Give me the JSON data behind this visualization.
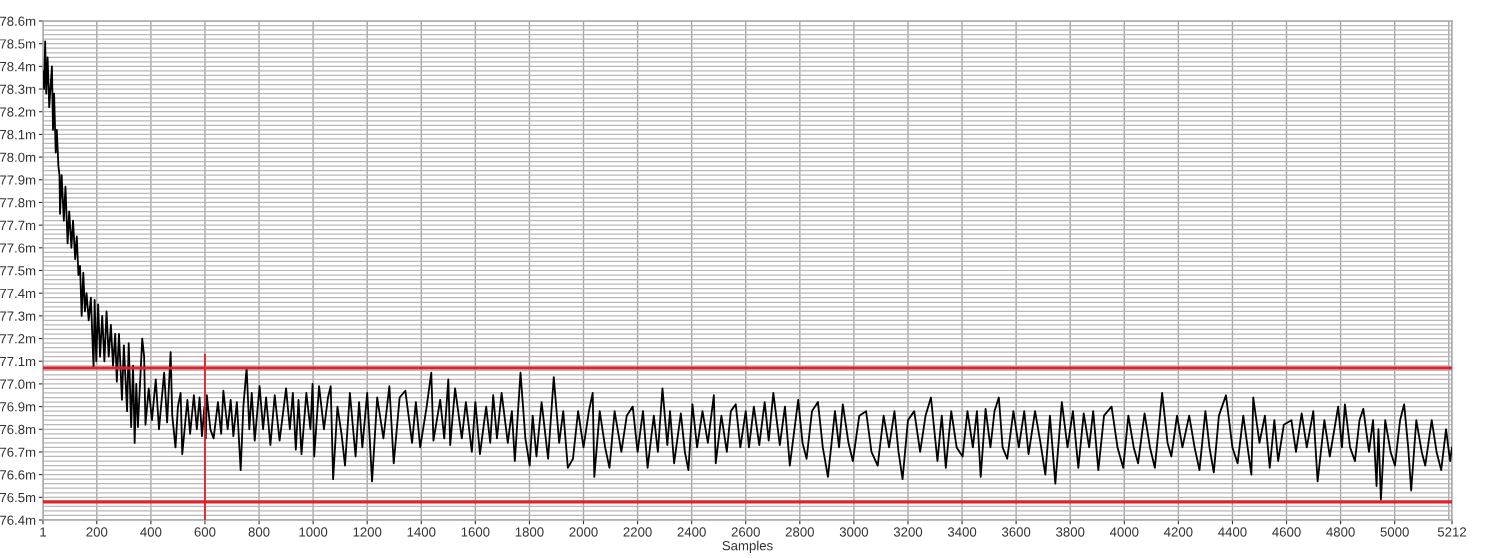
{
  "chart_data": {
    "type": "line",
    "xlabel": "Samples",
    "xlim": [
      1,
      5212
    ],
    "ylim": [
      76.4,
      78.6
    ],
    "grid": true,
    "xticks": [
      1,
      200,
      400,
      600,
      800,
      1000,
      1200,
      1400,
      1600,
      1800,
      2000,
      2200,
      2400,
      2600,
      2800,
      3000,
      3200,
      3400,
      3600,
      3800,
      4000,
      4200,
      4400,
      4600,
      4800,
      5000,
      {
        "value": 5200,
        "label": null
      },
      5212
    ],
    "yticks": [
      {
        "value": 76.4,
        "label": "76.4m"
      },
      {
        "value": 76.42,
        "label": null
      },
      {
        "value": 76.44,
        "label": null
      },
      {
        "value": 76.46,
        "label": null
      },
      {
        "value": 76.48,
        "label": null
      },
      {
        "value": 76.5,
        "label": "76.5m"
      },
      {
        "value": 76.52,
        "label": null
      },
      {
        "value": 76.54,
        "label": null
      },
      {
        "value": 76.56,
        "label": null
      },
      {
        "value": 76.58,
        "label": null
      },
      {
        "value": 76.6,
        "label": "76.6m"
      },
      {
        "value": 76.62,
        "label": null
      },
      {
        "value": 76.64,
        "label": null
      },
      {
        "value": 76.66,
        "label": null
      },
      {
        "value": 76.68,
        "label": null
      },
      {
        "value": 76.7,
        "label": "76.7m"
      },
      {
        "value": 76.72,
        "label": null
      },
      {
        "value": 76.74,
        "label": null
      },
      {
        "value": 76.76,
        "label": null
      },
      {
        "value": 76.78,
        "label": null
      },
      {
        "value": 76.8,
        "label": "76.8m"
      },
      {
        "value": 76.82,
        "label": null
      },
      {
        "value": 76.84,
        "label": null
      },
      {
        "value": 76.86,
        "label": null
      },
      {
        "value": 76.88,
        "label": null
      },
      {
        "value": 76.9,
        "label": "76.9m"
      },
      {
        "value": 76.92,
        "label": null
      },
      {
        "value": 76.94,
        "label": null
      },
      {
        "value": 76.96,
        "label": null
      },
      {
        "value": 76.98,
        "label": null
      },
      {
        "value": 77.0,
        "label": "77.0m"
      },
      {
        "value": 77.02,
        "label": null
      },
      {
        "value": 77.04,
        "label": null
      },
      {
        "value": 77.06,
        "label": null
      },
      {
        "value": 77.08,
        "label": null
      },
      {
        "value": 77.1,
        "label": "77.1m"
      },
      {
        "value": 77.12,
        "label": null
      },
      {
        "value": 77.14,
        "label": null
      },
      {
        "value": 77.16,
        "label": null
      },
      {
        "value": 77.18,
        "label": null
      },
      {
        "value": 77.2,
        "label": "77.2m"
      },
      {
        "value": 77.22,
        "label": null
      },
      {
        "value": 77.24,
        "label": null
      },
      {
        "value": 77.26,
        "label": null
      },
      {
        "value": 77.28,
        "label": null
      },
      {
        "value": 77.3,
        "label": "77.3m"
      },
      {
        "value": 77.32,
        "label": null
      },
      {
        "value": 77.34,
        "label": null
      },
      {
        "value": 77.36,
        "label": null
      },
      {
        "value": 77.38,
        "label": null
      },
      {
        "value": 77.4,
        "label": "77.4m"
      },
      {
        "value": 77.42,
        "label": null
      },
      {
        "value": 77.44,
        "label": null
      },
      {
        "value": 77.46,
        "label": null
      },
      {
        "value": 77.48,
        "label": null
      },
      {
        "value": 77.5,
        "label": "77.5m"
      },
      {
        "value": 77.52,
        "label": null
      },
      {
        "value": 77.54,
        "label": null
      },
      {
        "value": 77.56,
        "label": null
      },
      {
        "value": 77.58,
        "label": null
      },
      {
        "value": 77.6,
        "label": "77.6m"
      },
      {
        "value": 77.62,
        "label": null
      },
      {
        "value": 77.64,
        "label": null
      },
      {
        "value": 77.66,
        "label": null
      },
      {
        "value": 77.68,
        "label": null
      },
      {
        "value": 77.7,
        "label": "77.7m"
      },
      {
        "value": 77.72,
        "label": null
      },
      {
        "value": 77.74,
        "label": null
      },
      {
        "value": 77.76,
        "label": null
      },
      {
        "value": 77.78,
        "label": null
      },
      {
        "value": 77.8,
        "label": "77.8m"
      },
      {
        "value": 77.82,
        "label": null
      },
      {
        "value": 77.84,
        "label": null
      },
      {
        "value": 77.86,
        "label": null
      },
      {
        "value": 77.88,
        "label": null
      },
      {
        "value": 77.9,
        "label": "77.9m"
      },
      {
        "value": 77.92,
        "label": null
      },
      {
        "value": 77.94,
        "label": null
      },
      {
        "value": 77.96,
        "label": null
      },
      {
        "value": 77.98,
        "label": null
      },
      {
        "value": 78.0,
        "label": "78.0m"
      },
      {
        "value": 78.02,
        "label": null
      },
      {
        "value": 78.04,
        "label": null
      },
      {
        "value": 78.06,
        "label": null
      },
      {
        "value": 78.08,
        "label": null
      },
      {
        "value": 78.1,
        "label": "78.1m"
      },
      {
        "value": 78.12,
        "label": null
      },
      {
        "value": 78.14,
        "label": null
      },
      {
        "value": 78.16,
        "label": null
      },
      {
        "value": 78.18,
        "label": null
      },
      {
        "value": 78.2,
        "label": "78.2m"
      },
      {
        "value": 78.22,
        "label": null
      },
      {
        "value": 78.24,
        "label": null
      },
      {
        "value": 78.26,
        "label": null
      },
      {
        "value": 78.28,
        "label": null
      },
      {
        "value": 78.3,
        "label": "78.3m"
      },
      {
        "value": 78.32,
        "label": null
      },
      {
        "value": 78.34,
        "label": null
      },
      {
        "value": 78.36,
        "label": null
      },
      {
        "value": 78.38,
        "label": null
      },
      {
        "value": 78.4,
        "label": "78.4m"
      },
      {
        "value": 78.42,
        "label": null
      },
      {
        "value": 78.44,
        "label": null
      },
      {
        "value": 78.46,
        "label": null
      },
      {
        "value": 78.48,
        "label": null
      },
      {
        "value": 78.5,
        "label": "78.5m"
      },
      {
        "value": 78.52,
        "label": null
      },
      {
        "value": 78.54,
        "label": null
      },
      {
        "value": 78.56,
        "label": null
      },
      {
        "value": 78.58,
        "label": null
      },
      {
        "value": 78.6,
        "label": "78.6m"
      }
    ],
    "series": [
      {
        "type": "line",
        "color": "#000000",
        "x": [
          1,
          5,
          9,
          13,
          18,
          24,
          34,
          38,
          42,
          48,
          52,
          58,
          62,
          64,
          70,
          78,
          84,
          92,
          98,
          106,
          112,
          120,
          126,
          132,
          138,
          144,
          150,
          156,
          162,
          170,
          178,
          188,
          192,
          198,
          205,
          212,
          220,
          228,
          236,
          244,
          252,
          260,
          268,
          274,
          282,
          293,
          300,
          312,
          318,
          327,
          334,
          340,
          346,
          352,
          368,
          375,
          380,
          392,
          404,
          418,
          430,
          449,
          460,
          473,
          479,
          491,
          500,
          510,
          516,
          535,
          545,
          559,
          570,
          580,
          589,
          598,
          603,
          607,
          620,
          632,
          648,
          660,
          668,
          684,
          695,
          705,
          718,
          732,
          742,
          754,
          764,
          773,
          784,
          802,
          815,
          826,
          842,
          858,
          876,
          900,
          914,
          925,
          936,
          946,
          957,
          975,
          990,
          998,
          1004,
          1022,
          1040,
          1055,
          1065,
          1074,
          1090,
          1105,
          1118,
          1136,
          1157,
          1170,
          1182,
          1200,
          1218,
          1237,
          1260,
          1282,
          1298,
          1320,
          1341,
          1366,
          1380,
          1396,
          1420,
          1437,
          1445,
          1470,
          1485,
          1500,
          1507,
          1525,
          1550,
          1565,
          1587,
          1600,
          1617,
          1640,
          1655,
          1666,
          1680,
          1697,
          1720,
          1735,
          1746,
          1767,
          1785,
          1801,
          1812,
          1826,
          1845,
          1869,
          1890,
          1910,
          1925,
          1942,
          1961,
          1980,
          2000,
          2020,
          2034,
          2040,
          2060,
          2080,
          2096,
          2115,
          2140,
          2160,
          2182,
          2200,
          2220,
          2237,
          2260,
          2275,
          2292,
          2310,
          2320,
          2335,
          2360,
          2375,
          2388,
          2403,
          2420,
          2440,
          2460,
          2482,
          2489,
          2510,
          2530,
          2545,
          2563,
          2580,
          2600,
          2612,
          2630,
          2650,
          2670,
          2685,
          2702,
          2726,
          2745,
          2763,
          2794,
          2810,
          2825,
          2845,
          2867,
          2885,
          2904,
          2930,
          2945,
          2959,
          2980,
          2996,
          3020,
          3045,
          3065,
          3088,
          3110,
          3130,
          3150,
          3165,
          3180,
          3200,
          3223,
          3245,
          3265,
          3285,
          3309,
          3325,
          3340,
          3360,
          3380,
          3402,
          3420,
          3440,
          3455,
          3469,
          3487,
          3505,
          3520,
          3536,
          3550,
          3567,
          3590,
          3610,
          3630,
          3646,
          3670,
          3690,
          3708,
          3725,
          3745,
          3769,
          3790,
          3810,
          3830,
          3850,
          3870,
          3885,
          3904,
          3925,
          3953,
          3975,
          3996,
          4015,
          4035,
          4051,
          4075,
          4095,
          4113,
          4140,
          4160,
          4174,
          4195,
          4215,
          4240,
          4260,
          4278,
          4300,
          4315,
          4331,
          4350,
          4376,
          4400,
          4419,
          4440,
          4470,
          4477,
          4500,
          4520,
          4538,
          4555,
          4569,
          4590,
          4618,
          4635,
          4656,
          4675,
          4699,
          4715,
          4740,
          4760,
          4791,
          4805,
          4816,
          4835,
          4853,
          4870,
          4884,
          4905,
          4920,
          4933,
          4940,
          4949,
          4965,
          4985,
          5001,
          5020,
          5035,
          5050,
          5061,
          5080,
          5100,
          5113,
          5137,
          5155,
          5172,
          5190,
          5205,
          5212
        ],
        "values": [
          78.38,
          78.3,
          78.51,
          78.28,
          78.44,
          78.22,
          78.4,
          78.12,
          78.28,
          78.02,
          78.12,
          77.96,
          77.92,
          77.75,
          77.92,
          77.72,
          77.87,
          77.62,
          77.76,
          77.6,
          77.72,
          77.55,
          77.65,
          77.48,
          77.52,
          77.3,
          77.49,
          77.32,
          77.4,
          77.28,
          77.38,
          77.07,
          77.37,
          77.1,
          77.35,
          77.12,
          77.3,
          77.1,
          77.32,
          77.12,
          77.26,
          77.08,
          77.22,
          77.01,
          77.22,
          76.93,
          77.17,
          76.88,
          77.18,
          76.81,
          77.08,
          76.74,
          77.0,
          76.81,
          77.2,
          77.12,
          76.82,
          76.98,
          76.84,
          77.02,
          76.8,
          77.05,
          76.83,
          77.14,
          76.86,
          76.72,
          76.9,
          76.96,
          76.69,
          76.93,
          76.78,
          76.95,
          76.8,
          76.94,
          76.77,
          76.9,
          76.76,
          76.95,
          76.8,
          76.76,
          76.92,
          76.78,
          76.97,
          76.8,
          76.93,
          76.77,
          76.92,
          76.62,
          76.9,
          77.07,
          76.8,
          76.96,
          76.75,
          76.99,
          76.8,
          76.94,
          76.73,
          76.95,
          76.75,
          76.98,
          76.8,
          76.96,
          76.71,
          76.93,
          76.69,
          76.96,
          76.8,
          77.0,
          76.68,
          76.99,
          76.8,
          76.94,
          76.99,
          76.58,
          76.9,
          76.78,
          76.64,
          76.96,
          76.68,
          76.92,
          76.72,
          76.96,
          76.57,
          76.94,
          76.76,
          76.99,
          76.65,
          76.94,
          76.97,
          76.74,
          76.92,
          76.72,
          76.9,
          77.05,
          76.75,
          76.93,
          76.76,
          77.02,
          76.73,
          76.98,
          76.76,
          76.92,
          76.7,
          76.92,
          76.69,
          76.9,
          76.74,
          76.95,
          76.76,
          76.96,
          76.74,
          76.88,
          76.66,
          77.05,
          76.76,
          76.64,
          76.86,
          76.68,
          76.92,
          76.67,
          77.03,
          76.74,
          76.88,
          76.63,
          76.67,
          76.88,
          76.72,
          76.88,
          76.96,
          76.59,
          76.88,
          76.72,
          76.63,
          76.88,
          76.7,
          76.86,
          76.9,
          76.7,
          76.88,
          76.63,
          76.86,
          76.7,
          76.98,
          76.73,
          76.88,
          76.65,
          76.87,
          76.7,
          76.62,
          76.91,
          76.72,
          76.88,
          76.74,
          76.95,
          76.65,
          76.86,
          76.7,
          76.88,
          76.91,
          76.72,
          76.88,
          76.72,
          76.9,
          76.73,
          76.92,
          76.75,
          76.96,
          76.73,
          76.9,
          76.64,
          76.93,
          76.74,
          76.67,
          76.88,
          76.92,
          76.72,
          76.59,
          76.88,
          76.72,
          76.91,
          76.74,
          76.66,
          76.86,
          76.88,
          76.7,
          76.64,
          76.86,
          76.72,
          76.88,
          76.7,
          76.58,
          76.84,
          76.88,
          76.7,
          76.86,
          76.94,
          76.66,
          76.86,
          76.63,
          76.88,
          76.72,
          76.68,
          76.88,
          76.72,
          76.88,
          76.59,
          76.89,
          76.72,
          76.88,
          76.94,
          76.72,
          76.67,
          76.88,
          76.72,
          76.88,
          76.69,
          76.88,
          76.74,
          76.6,
          76.86,
          76.56,
          76.92,
          76.72,
          76.88,
          76.63,
          76.87,
          76.72,
          76.88,
          76.62,
          76.86,
          76.9,
          76.72,
          76.63,
          76.86,
          76.72,
          76.65,
          76.87,
          76.72,
          76.63,
          76.96,
          76.74,
          76.68,
          76.86,
          76.72,
          76.86,
          76.72,
          76.62,
          76.88,
          76.72,
          76.61,
          76.86,
          76.95,
          76.72,
          76.65,
          76.86,
          76.6,
          76.94,
          76.74,
          76.86,
          76.63,
          76.84,
          76.66,
          76.82,
          76.84,
          76.7,
          76.87,
          76.72,
          76.88,
          76.57,
          76.84,
          76.68,
          76.9,
          76.72,
          76.91,
          76.72,
          76.66,
          76.84,
          76.89,
          76.7,
          76.84,
          76.55,
          76.8,
          76.49,
          76.84,
          76.7,
          76.64,
          76.84,
          76.91,
          76.72,
          76.53,
          76.84,
          76.7,
          76.64,
          76.84,
          76.7,
          76.62,
          76.8,
          76.66,
          76.72
        ]
      },
      {
        "type": "line",
        "color": "#e0202a",
        "x": [
          600,
          600
        ],
        "values": [
          76.4,
          77.13
        ]
      }
    ],
    "ref_lines": [
      {
        "axis": "y",
        "value": 77.07,
        "color": "#e0202a"
      },
      {
        "axis": "y",
        "value": 76.48,
        "color": "#e0202a"
      }
    ]
  }
}
